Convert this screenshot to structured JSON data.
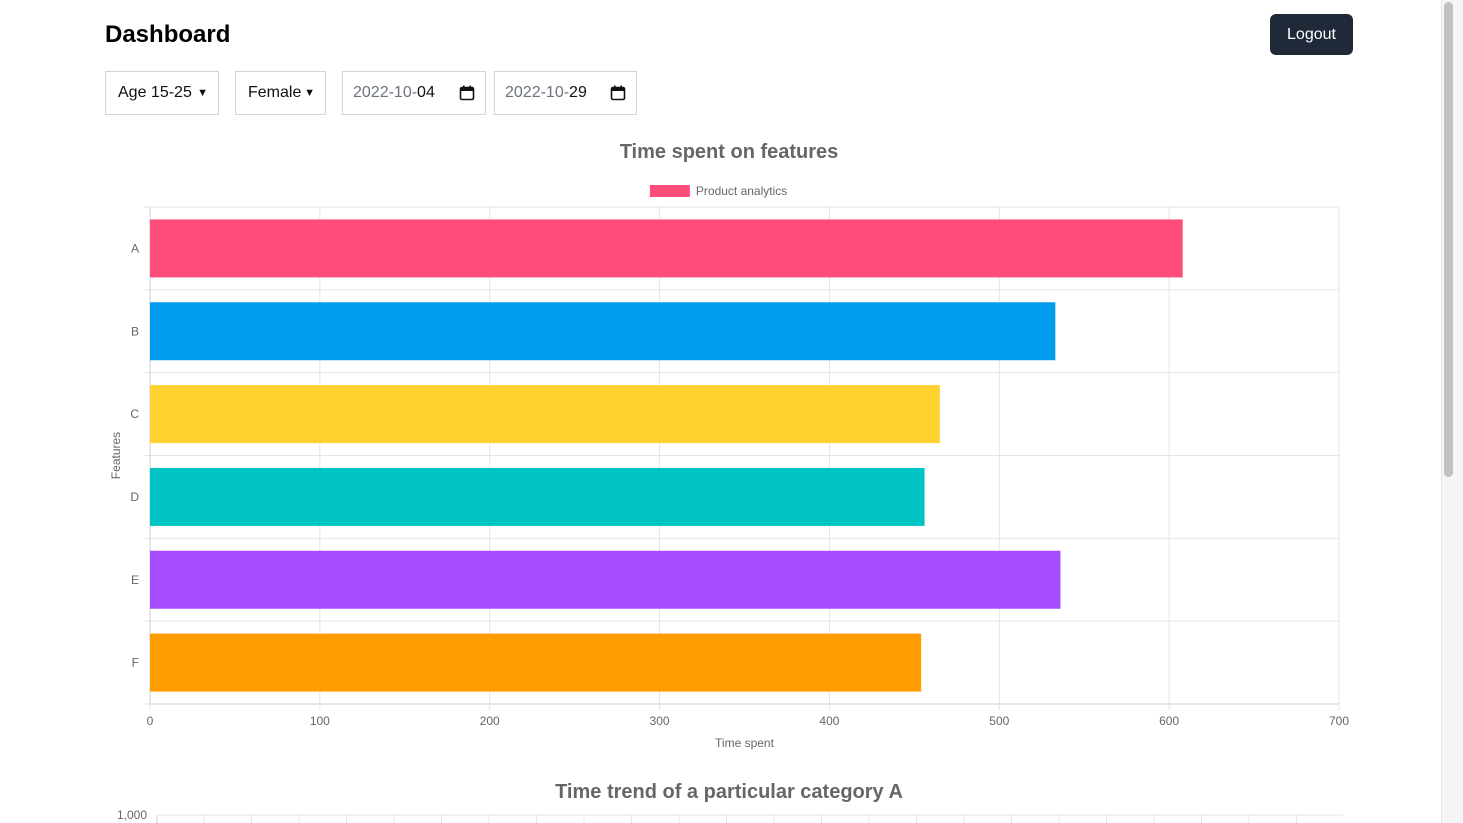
{
  "header": {
    "title": "Dashboard",
    "logout_label": "Logout"
  },
  "filters": {
    "age": "Age 15-25",
    "gender": "Female",
    "start_date": {
      "year": "2022",
      "month": "10",
      "day": "04"
    },
    "end_date": {
      "year": "2022",
      "month": "10",
      "day": "29"
    }
  },
  "chart_data": [
    {
      "type": "bar",
      "orientation": "horizontal",
      "title": "Time spent on features",
      "xlabel": "Time spent",
      "ylabel": "Features",
      "xlim": [
        0,
        700
      ],
      "xticks": [
        "0",
        "100",
        "200",
        "300",
        "400",
        "500",
        "600",
        "700"
      ],
      "categories": [
        "A",
        "B",
        "C",
        "D",
        "E",
        "F"
      ],
      "series": [
        {
          "name": "Product analytics",
          "values": [
            608,
            533,
            465,
            456,
            536,
            454
          ]
        }
      ],
      "colors": [
        "#ff4d79",
        "#009dee",
        "#ffd12e",
        "#00c4c4",
        "#a64dff",
        "#ff9c00"
      ],
      "legend_position": "top",
      "grid": true
    },
    {
      "type": "line",
      "title": "Time trend of a particular category A",
      "yticks_visible": [
        "1,000"
      ]
    }
  ]
}
